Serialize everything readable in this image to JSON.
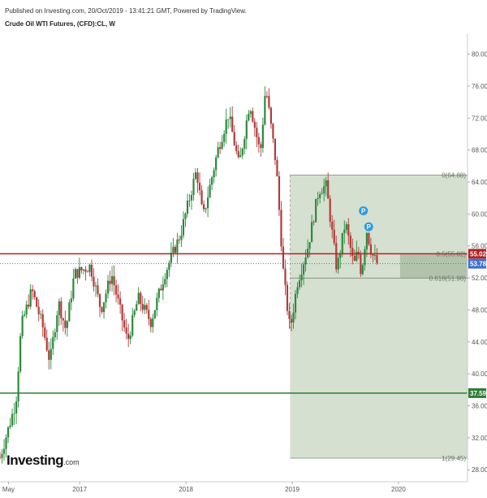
{
  "header": {
    "published": "Published on Investing.com, 20/Oct/2019 - 13:41:21 GMT, Powered by TradingView.",
    "symbol": "Crude Oil WTI Futures, (CFD):CL, W"
  },
  "logo": {
    "word": "Investing",
    "domain": ".com"
  },
  "chart_data": {
    "type": "candlestick",
    "title": "Crude Oil WTI Futures, (CFD):CL, W",
    "ylim": [
      26.5,
      82.5
    ],
    "xlim": [
      2016.25,
      2020.65
    ],
    "y_ticks": [
      "80.00",
      "76.00",
      "72.00",
      "68.00",
      "64.00",
      "60.00",
      "56.00",
      "52.00",
      "48.00",
      "44.00",
      "40.00",
      "36.00",
      "32.00",
      "28.00"
    ],
    "x_ticks": [
      {
        "label": "May",
        "x": 2016.33
      },
      {
        "label": "2017",
        "x": 2017.0
      },
      {
        "label": "2018",
        "x": 2018.0
      },
      {
        "label": "2019",
        "x": 2019.0
      },
      {
        "label": "2020",
        "x": 2020.0
      }
    ],
    "key_points": [
      {
        "x": 2016.25,
        "y": 29.5
      },
      {
        "x": 2016.4,
        "y": 36.5
      },
      {
        "x": 2016.45,
        "y": 46.0
      },
      {
        "x": 2016.55,
        "y": 50.5
      },
      {
        "x": 2016.65,
        "y": 46.0
      },
      {
        "x": 2016.72,
        "y": 41.5
      },
      {
        "x": 2016.8,
        "y": 49.0
      },
      {
        "x": 2016.87,
        "y": 45.5
      },
      {
        "x": 2016.95,
        "y": 52.5
      },
      {
        "x": 2017.1,
        "y": 53.5
      },
      {
        "x": 2017.2,
        "y": 48.0
      },
      {
        "x": 2017.3,
        "y": 52.5
      },
      {
        "x": 2017.45,
        "y": 44.0
      },
      {
        "x": 2017.55,
        "y": 49.5
      },
      {
        "x": 2017.67,
        "y": 46.5
      },
      {
        "x": 2017.8,
        "y": 52.5
      },
      {
        "x": 2017.95,
        "y": 57.5
      },
      {
        "x": 2018.1,
        "y": 65.5
      },
      {
        "x": 2018.16,
        "y": 59.5
      },
      {
        "x": 2018.3,
        "y": 68.0
      },
      {
        "x": 2018.4,
        "y": 72.5
      },
      {
        "x": 2018.5,
        "y": 66.0
      },
      {
        "x": 2018.6,
        "y": 74.0
      },
      {
        "x": 2018.7,
        "y": 67.5
      },
      {
        "x": 2018.75,
        "y": 76.0
      },
      {
        "x": 2018.85,
        "y": 66.0
      },
      {
        "x": 2018.92,
        "y": 52.0
      },
      {
        "x": 2018.98,
        "y": 45.5
      },
      {
        "x": 2019.05,
        "y": 51.5
      },
      {
        "x": 2019.15,
        "y": 56.0
      },
      {
        "x": 2019.25,
        "y": 63.0
      },
      {
        "x": 2019.32,
        "y": 63.5
      },
      {
        "x": 2019.42,
        "y": 53.0
      },
      {
        "x": 2019.5,
        "y": 59.0
      },
      {
        "x": 2019.58,
        "y": 53.5
      },
      {
        "x": 2019.62,
        "y": 55.5
      },
      {
        "x": 2019.65,
        "y": 52.5
      },
      {
        "x": 2019.7,
        "y": 58.0
      },
      {
        "x": 2019.75,
        "y": 55.0
      },
      {
        "x": 2019.8,
        "y": 53.8
      }
    ],
    "fib_box": {
      "x_start": 2018.98,
      "x_end": 2020.65,
      "levels": [
        {
          "ratio": "0",
          "value": 64.88,
          "label": "0(64.88)"
        },
        {
          "ratio": "0.5",
          "value": 55.02,
          "label": "0.5(55.02)"
        },
        {
          "ratio": "0.618",
          "value": 51.98,
          "label": "0.618(51.98)"
        },
        {
          "ratio": "1",
          "value": 29.45,
          "label": "1(29.45)"
        }
      ]
    },
    "horizontal_lines": [
      {
        "value": 55.02,
        "color": "#b22222",
        "label": "55.02"
      },
      {
        "value": 37.59,
        "color": "#2e7d32",
        "label": "37.59"
      }
    ],
    "last_price": {
      "value": 53.78,
      "label": "53.78",
      "color": "#3f6fd1"
    },
    "markers": [
      {
        "x": 2019.67,
        "y": 60.4,
        "label": "P"
      },
      {
        "x": 2019.72,
        "y": 58.4,
        "label": "P"
      }
    ],
    "colors": {
      "up": "#2a8a3c",
      "down": "#b33a3a",
      "fib_fill": "#c7d6c0",
      "fib_fill_inner": "#a9bca2"
    }
  }
}
